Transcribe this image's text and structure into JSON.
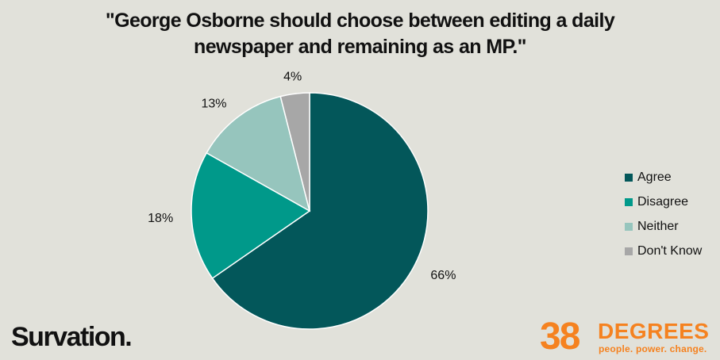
{
  "chart_data": {
    "type": "pie",
    "title_lines": [
      "\"George Osborne should choose between editing a daily",
      "newspaper and remaining as an MP.\""
    ],
    "slices": [
      {
        "label": "Agree",
        "value": 66,
        "display": "66%",
        "color": "#03575a"
      },
      {
        "label": "Disagree",
        "value": 18,
        "display": "18%",
        "color": "#00998a"
      },
      {
        "label": "Neither",
        "value": 13,
        "display": "13%",
        "color": "#96c5bd"
      },
      {
        "label": "Don't Know",
        "value": 4,
        "display": "4%",
        "color": "#a7a7a7"
      }
    ],
    "legend_position": "right"
  },
  "logos": {
    "survation": "Survation.",
    "brand_number": "38",
    "brand_word": "DEGREES",
    "brand_tagline": "people. power. change."
  }
}
